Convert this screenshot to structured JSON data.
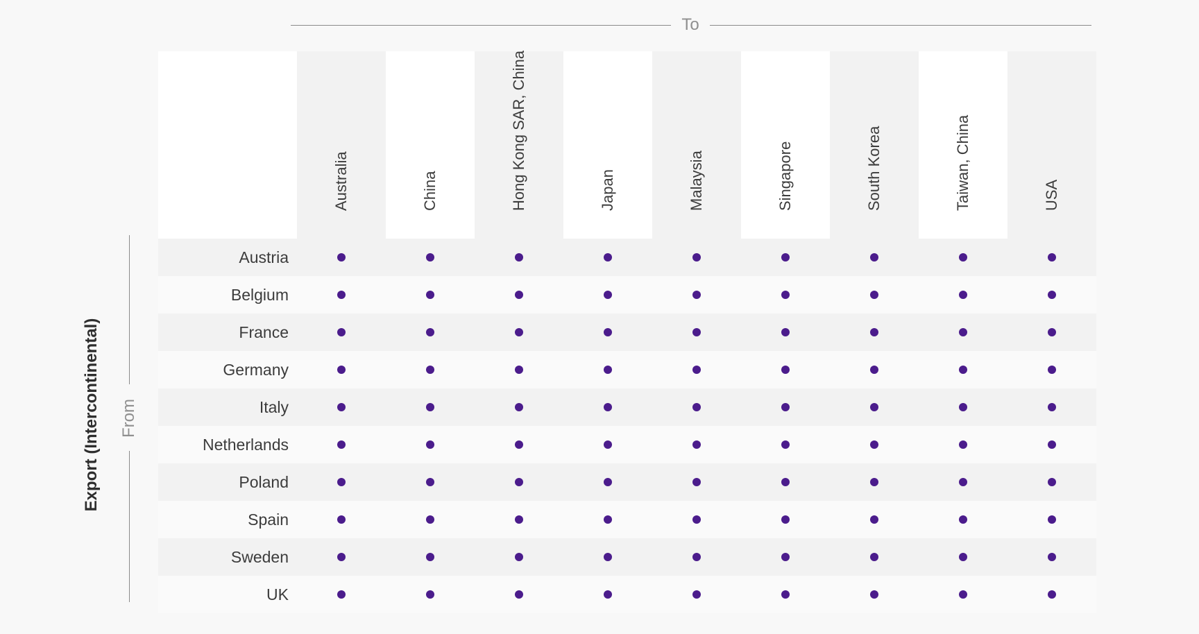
{
  "header": {
    "to_label": "To",
    "from_label": "From",
    "side_title": "Export (Intercontinental)"
  },
  "colors": {
    "dot": "#4b1c8c",
    "band": "#f2f2f2",
    "band_alt": "#fafafa"
  },
  "chart_data": {
    "type": "table",
    "columns": [
      "Australia",
      "China",
      "Hong Kong SAR, China",
      "Japan",
      "Malaysia",
      "Singapore",
      "South Korea",
      "Taiwan, China",
      "USA"
    ],
    "rows": [
      "Austria",
      "Belgium",
      "France",
      "Germany",
      "Italy",
      "Netherlands",
      "Poland",
      "Spain",
      "Sweden",
      "UK"
    ],
    "cells": [
      [
        1,
        1,
        1,
        1,
        1,
        1,
        1,
        1,
        1
      ],
      [
        1,
        1,
        1,
        1,
        1,
        1,
        1,
        1,
        1
      ],
      [
        1,
        1,
        1,
        1,
        1,
        1,
        1,
        1,
        1
      ],
      [
        1,
        1,
        1,
        1,
        1,
        1,
        1,
        1,
        1
      ],
      [
        1,
        1,
        1,
        1,
        1,
        1,
        1,
        1,
        1
      ],
      [
        1,
        1,
        1,
        1,
        1,
        1,
        1,
        1,
        1
      ],
      [
        1,
        1,
        1,
        1,
        1,
        1,
        1,
        1,
        1
      ],
      [
        1,
        1,
        1,
        1,
        1,
        1,
        1,
        1,
        1
      ],
      [
        1,
        1,
        1,
        1,
        1,
        1,
        1,
        1,
        1
      ],
      [
        1,
        1,
        1,
        1,
        1,
        1,
        1,
        1,
        1
      ]
    ],
    "cell_marker": "dot"
  }
}
